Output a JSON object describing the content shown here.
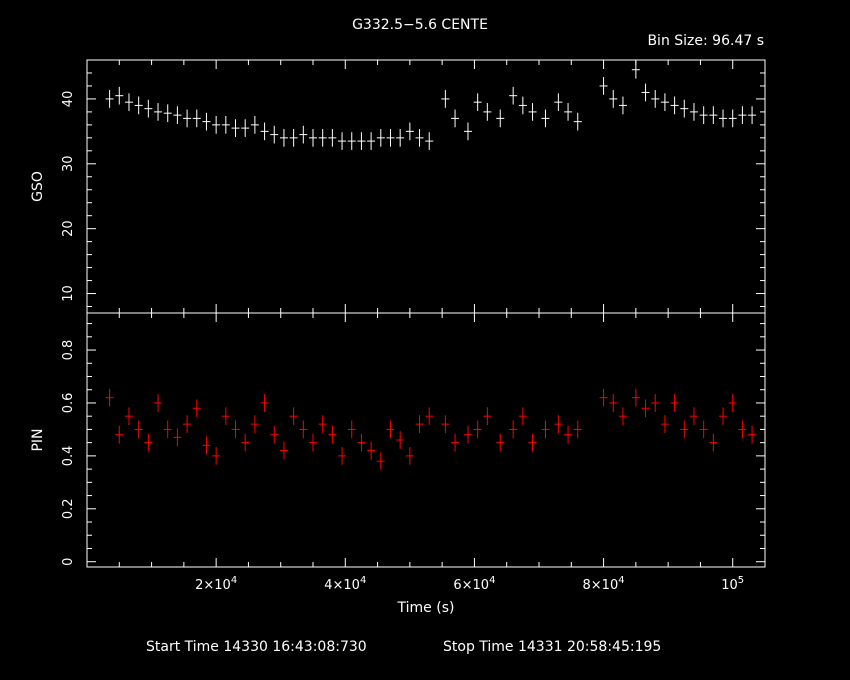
{
  "title": "G332.5−5.6 CENTE",
  "bin_size_label": "Bin Size: 96.47 s",
  "footer": {
    "start_label": "Start Time 14330 16:43:08:730",
    "stop_label": "Stop Time 14331 20:58:45:195"
  },
  "colors": {
    "background": "#000000",
    "axes": "#ffffff",
    "gso_series": "#ffffff",
    "pin_series": "#ff0000"
  },
  "chart_data": [
    {
      "type": "scatter",
      "panel": "top",
      "ylabel": "GSO",
      "xlim": [
        0,
        105000
      ],
      "ylim": [
        7,
        46
      ],
      "yticks_major": [
        10,
        20,
        30,
        40
      ],
      "yticks_minor_step": 2,
      "error_bars": true,
      "series": [
        {
          "name": "",
          "x": [
            3500,
            5000,
            6500,
            8000,
            9500,
            11000,
            12500,
            14000,
            15500,
            17000,
            18500,
            20000,
            21500,
            23000,
            24500,
            26000,
            27500,
            29000,
            30500,
            32000,
            33500,
            35000,
            36500,
            38000,
            39500,
            41000,
            42500,
            44000,
            45500,
            47000,
            48500,
            50000,
            51500,
            53000,
            55500,
            57000,
            59000,
            60500,
            62000,
            64000,
            66000,
            67500,
            69000,
            71000,
            73000,
            74500,
            76000,
            80000,
            81500,
            83000,
            85000,
            86500,
            88000,
            89500,
            91000,
            92500,
            94000,
            95500,
            97000,
            98500,
            100000,
            101500,
            103000
          ],
          "y": [
            40,
            40.5,
            39.5,
            39,
            38.5,
            38,
            37.8,
            37.5,
            37,
            37,
            36.5,
            36,
            36,
            35.5,
            35.5,
            36,
            35,
            34.5,
            34,
            34,
            34.5,
            34,
            34,
            34,
            33.5,
            33.5,
            33.5,
            33.5,
            34,
            34,
            34,
            35,
            34,
            33.5,
            40,
            37,
            35,
            39.5,
            38,
            37,
            40.5,
            39,
            38,
            37,
            39.5,
            38,
            36.5,
            42,
            40,
            39,
            44.5,
            41,
            40,
            39.5,
            39,
            38.5,
            38,
            37.5,
            37.5,
            37,
            37,
            37.5,
            37.5
          ]
        }
      ]
    },
    {
      "type": "scatter",
      "panel": "bottom",
      "ylabel": "PIN",
      "xlabel": "Time (s)",
      "xlim": [
        0,
        105000
      ],
      "ylim": [
        -0.02,
        0.94
      ],
      "yticks_major": [
        0,
        0.2,
        0.4,
        0.6,
        0.8
      ],
      "yticks_minor_step": 0.05,
      "xticks_major": [
        20000,
        40000,
        60000,
        80000,
        100000
      ],
      "xtick_labels": [
        {
          "base": "2×10",
          "exp": "4"
        },
        {
          "base": "4×10",
          "exp": "4"
        },
        {
          "base": "6×10",
          "exp": "4"
        },
        {
          "base": "8×10",
          "exp": "4"
        },
        {
          "base": "10",
          "exp": "5"
        }
      ],
      "xticks_minor_step": 5000,
      "error_bars": true,
      "series": [
        {
          "name": "",
          "x": [
            3500,
            5000,
            6500,
            8000,
            9500,
            11000,
            12500,
            14000,
            15500,
            17000,
            18500,
            20000,
            21500,
            23000,
            24500,
            26000,
            27500,
            29000,
            30500,
            32000,
            33500,
            35000,
            36500,
            38000,
            39500,
            41000,
            42500,
            44000,
            45500,
            47000,
            48500,
            50000,
            51500,
            53000,
            55500,
            57000,
            59000,
            60500,
            62000,
            64000,
            66000,
            67500,
            69000,
            71000,
            73000,
            74500,
            76000,
            80000,
            81500,
            83000,
            85000,
            86500,
            88000,
            89500,
            91000,
            92500,
            94000,
            95500,
            97000,
            98500,
            100000,
            101500,
            103000
          ],
          "y": [
            0.62,
            0.48,
            0.55,
            0.5,
            0.45,
            0.6,
            0.5,
            0.47,
            0.52,
            0.58,
            0.44,
            0.4,
            0.55,
            0.5,
            0.45,
            0.52,
            0.6,
            0.48,
            0.42,
            0.55,
            0.5,
            0.45,
            0.52,
            0.48,
            0.4,
            0.5,
            0.45,
            0.42,
            0.38,
            0.5,
            0.46,
            0.4,
            0.52,
            0.55,
            0.52,
            0.45,
            0.48,
            0.5,
            0.55,
            0.45,
            0.5,
            0.55,
            0.45,
            0.5,
            0.52,
            0.48,
            0.5,
            0.62,
            0.6,
            0.55,
            0.62,
            0.58,
            0.6,
            0.52,
            0.6,
            0.5,
            0.55,
            0.5,
            0.45,
            0.55,
            0.6,
            0.5,
            0.48
          ]
        }
      ]
    }
  ]
}
